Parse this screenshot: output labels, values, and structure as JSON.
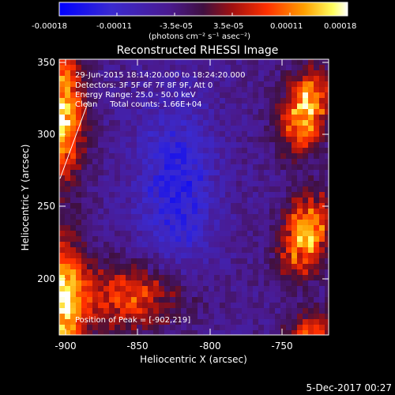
{
  "colorbar": {
    "ticks": [
      "-0.00018",
      "-0.00011",
      "-3.5e-05",
      "3.5e-05",
      "0.00011",
      "0.00018"
    ],
    "units": "(photons cm⁻² s⁻¹ asec⁻²)",
    "colors": [
      "#0000ff",
      "#3030c0",
      "#5a1a80",
      "#8a1a2a",
      "#d02000",
      "#ff6000",
      "#ffb000",
      "#ffff80",
      "#ffffff"
    ]
  },
  "plot": {
    "title": "Reconstructed RHESSI Image",
    "xlabel": "Heliocentric X (arcsec)",
    "ylabel": "Heliocentric Y (arcsec)",
    "xticks": [
      "-900",
      "-850",
      "-800",
      "-750"
    ],
    "yticks": [
      "350",
      "300",
      "250",
      "200"
    ],
    "xlim": [
      -910,
      -715
    ],
    "ylim": [
      155,
      352
    ]
  },
  "annotations": {
    "time": "29-Jun-2015 18:14:20.000 to 18:24:20.000",
    "detectors": "Detectors: 3F 5F 6F 7F 8F 9F, Att 0",
    "energy": "Energy Range: 25.0 - 50.0 keV",
    "clean": "Clean     Total counts: 1.66E+04",
    "peak": "Position of Peak = [-902,219]"
  },
  "footer": {
    "date": "5-Dec-2017 00:27"
  }
}
